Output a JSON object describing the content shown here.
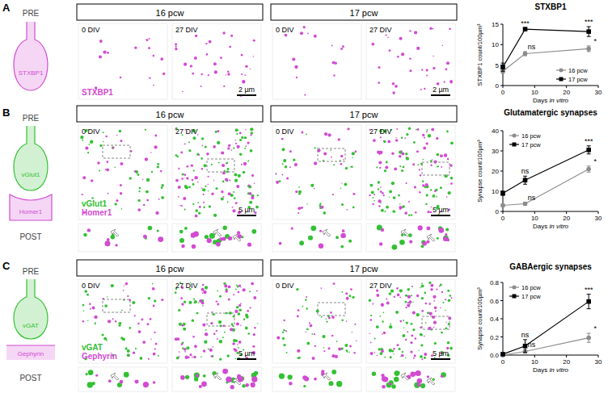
{
  "panels": [
    {
      "label": "A",
      "pre": "PRE",
      "markers": [
        {
          "name": "STXBP1",
          "color": "#d24bd2"
        }
      ],
      "headers": [
        "16 pcw",
        "17 pcw"
      ],
      "images": [
        "0 DIV",
        "27 DIV",
        "0 DIV",
        "27 DIV"
      ],
      "scale_bar": "2 µm"
    },
    {
      "label": "B",
      "pre": "PRE",
      "post": "POST",
      "markers": [
        {
          "name": "vGlut1",
          "color": "#33c133"
        },
        {
          "name": "Homer1",
          "color": "#d24bd2"
        }
      ],
      "headers": [
        "16 pcw",
        "17 pcw"
      ],
      "images": [
        "0 DIV",
        "27 DIV",
        "0 DIV",
        "27 DIV"
      ],
      "scale_bar": "5 µm"
    },
    {
      "label": "C",
      "pre": "PRE",
      "post": "POST",
      "markers": [
        {
          "name": "vGAT",
          "color": "#33c133"
        },
        {
          "name": "Gephyrin",
          "color": "#d24bd2"
        }
      ],
      "headers": [
        "16 pcw",
        "17 pcw"
      ],
      "images": [
        "0 DIV",
        "27 DIV",
        "0 DIV",
        "27 DIV"
      ],
      "scale_bar": "5 µm"
    }
  ],
  "chart_data": [
    {
      "type": "line",
      "title": "STXBP1",
      "x_label": "Days in vitro",
      "y_label": "STXBP1 count/100µm³",
      "x": [
        0,
        7,
        27
      ],
      "xlim": [
        0,
        30
      ],
      "xticks": [
        0,
        10,
        20,
        30
      ],
      "ylim": [
        0,
        15
      ],
      "yticks": [
        0,
        5,
        10,
        15
      ],
      "legend": "lower right",
      "series": [
        {
          "name": "16 pcw",
          "color": "#8c8c8c",
          "marker": "circle",
          "values": [
            3.5,
            7.8,
            9.0
          ],
          "errors": [
            0.5,
            0.5,
            0.7
          ],
          "annotations": [
            null,
            "ns",
            "*"
          ]
        },
        {
          "name": "17 pcw",
          "color": "#000000",
          "marker": "square",
          "values": [
            4.5,
            13.8,
            13.2
          ],
          "errors": [
            1.0,
            0.3,
            1.2
          ],
          "annotations": [
            null,
            "***",
            "***"
          ]
        }
      ]
    },
    {
      "type": "line",
      "title": "Glutamatergic synapses",
      "x_label": "Days in vitro",
      "y_label": "Synapse count/100µm³",
      "x": [
        0,
        7,
        27
      ],
      "xlim": [
        0,
        30
      ],
      "xticks": [
        0,
        10,
        20,
        30
      ],
      "ylim": [
        0,
        40
      ],
      "yticks": [
        0,
        10,
        20,
        30,
        40
      ],
      "legend": "upper left",
      "series": [
        {
          "name": "16 pcw",
          "color": "#8c8c8c",
          "marker": "circle",
          "values": [
            3.0,
            3.8,
            21.0
          ],
          "errors": [
            0.6,
            0.8,
            1.5
          ],
          "annotations": [
            null,
            "ns",
            "*"
          ]
        },
        {
          "name": "17 pcw",
          "color": "#000000",
          "marker": "square",
          "values": [
            9.0,
            15.5,
            30.5
          ],
          "errors": [
            1.0,
            2.0,
            2.0
          ],
          "annotations": [
            null,
            "ns",
            "***"
          ]
        }
      ]
    },
    {
      "type": "line",
      "title": "GABAergic synapses",
      "x_label": "Days in vitro",
      "y_label": "Synapse count/100µm³",
      "x": [
        0,
        7,
        27
      ],
      "xlim": [
        0,
        30
      ],
      "xticks": [
        0,
        10,
        20,
        30
      ],
      "ylim": [
        0,
        0.8
      ],
      "yticks": [
        {
          "value": 0,
          "label": "0.0"
        },
        0.2,
        0.4,
        0.6,
        0.8
      ],
      "legend": "upper left",
      "series": [
        {
          "name": "16 pcw",
          "color": "#8c8c8c",
          "marker": "circle",
          "values": [
            0.0,
            0.04,
            0.19
          ],
          "errors": [
            0.005,
            0.02,
            0.05
          ],
          "annotations": [
            null,
            "ns",
            "*"
          ]
        },
        {
          "name": "17 pcw",
          "color": "#000000",
          "marker": "square",
          "values": [
            0.01,
            0.1,
            0.59
          ],
          "errors": [
            0.005,
            0.07,
            0.08
          ],
          "annotations": [
            null,
            "ns",
            "***"
          ]
        }
      ]
    }
  ]
}
